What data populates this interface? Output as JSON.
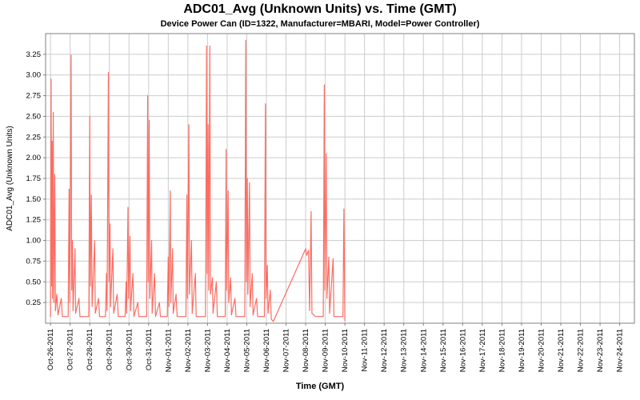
{
  "chart_data": {
    "type": "line",
    "title": "ADC01_Avg (Unknown Units) vs. Time (GMT)",
    "subtitle": "Device Power Can (ID=1322, Manufacturer=MBARI, Model=Power Controller)",
    "xlabel": "Time (GMT)",
    "ylabel": "ADC01_Avg (Unknown Units)",
    "legend": "none",
    "grid": true,
    "ylim": [
      0,
      3.5
    ],
    "x_range_days": [
      -0.25,
      29.75
    ],
    "y_tick_labels": [
      "0.25",
      "0.50",
      "0.75",
      "1.00",
      "1.25",
      "1.50",
      "1.75",
      "2.00",
      "2.25",
      "2.50",
      "2.75",
      "3.00",
      "3.25"
    ],
    "x_tick_labels": [
      "Oct-26-2011",
      "Oct-27-2011",
      "Oct-28-2011",
      "Oct-29-2011",
      "Oct-30-2011",
      "Oct-31-2011",
      "Nov-01-2011",
      "Nov-02-2011",
      "Nov-03-2011",
      "Nov-04-2011",
      "Nov-05-2011",
      "Nov-06-2011",
      "Nov-07-2011",
      "Nov-08-2011",
      "Nov-09-2011",
      "Nov-10-2011",
      "Nov-11-2011",
      "Nov-12-2011",
      "Nov-13-2011",
      "Nov-14-2011",
      "Nov-15-2011",
      "Nov-16-2011",
      "Nov-17-2011",
      "Nov-18-2011",
      "Nov-19-2011",
      "Nov-20-2011",
      "Nov-21-2011",
      "Nov-22-2011",
      "Nov-23-2011",
      "Nov-24-2011"
    ],
    "colors": {
      "line": "#fb6d62",
      "grid": "#cccccc",
      "plot_border": "#808080",
      "background": "#ffffff",
      "text": "#000000"
    },
    "series": [
      {
        "name": "ADC01_Avg",
        "x_unit": "days since Oct-26-2011",
        "points": [
          [
            0.0,
            0.08
          ],
          [
            0.03,
            2.95
          ],
          [
            0.06,
            0.45
          ],
          [
            0.08,
            2.2
          ],
          [
            0.1,
            0.3
          ],
          [
            0.14,
            2.55
          ],
          [
            0.17,
            0.25
          ],
          [
            0.22,
            1.8
          ],
          [
            0.25,
            0.15
          ],
          [
            0.32,
            0.35
          ],
          [
            0.38,
            0.1
          ],
          [
            0.55,
            0.3
          ],
          [
            0.6,
            0.08
          ],
          [
            0.9,
            0.08
          ],
          [
            0.95,
            1.62
          ],
          [
            0.98,
            0.25
          ],
          [
            1.05,
            3.24
          ],
          [
            1.08,
            0.4
          ],
          [
            1.12,
            1.0
          ],
          [
            1.15,
            0.15
          ],
          [
            1.25,
            0.9
          ],
          [
            1.28,
            0.12
          ],
          [
            1.45,
            0.3
          ],
          [
            1.5,
            0.08
          ],
          [
            1.95,
            0.08
          ],
          [
            2.0,
            2.5
          ],
          [
            2.03,
            0.45
          ],
          [
            2.08,
            1.55
          ],
          [
            2.12,
            0.2
          ],
          [
            2.25,
            1.0
          ],
          [
            2.28,
            0.12
          ],
          [
            2.45,
            0.3
          ],
          [
            2.5,
            0.08
          ],
          [
            2.8,
            0.08
          ],
          [
            2.85,
            0.6
          ],
          [
            2.88,
            0.15
          ],
          [
            2.95,
            3.03
          ],
          [
            2.98,
            0.5
          ],
          [
            3.03,
            1.2
          ],
          [
            3.06,
            0.2
          ],
          [
            3.18,
            0.9
          ],
          [
            3.22,
            0.12
          ],
          [
            3.4,
            0.35
          ],
          [
            3.45,
            0.08
          ],
          [
            3.8,
            0.08
          ],
          [
            3.85,
            0.5
          ],
          [
            3.88,
            0.12
          ],
          [
            3.95,
            1.4
          ],
          [
            3.98,
            0.3
          ],
          [
            4.05,
            1.05
          ],
          [
            4.08,
            0.15
          ],
          [
            4.2,
            0.6
          ],
          [
            4.25,
            0.08
          ],
          [
            4.45,
            0.25
          ],
          [
            4.5,
            0.08
          ],
          [
            4.9,
            0.08
          ],
          [
            4.95,
            2.75
          ],
          [
            4.98,
            0.5
          ],
          [
            5.03,
            2.45
          ],
          [
            5.06,
            0.3
          ],
          [
            5.15,
            1.0
          ],
          [
            5.18,
            0.12
          ],
          [
            5.3,
            0.6
          ],
          [
            5.35,
            0.08
          ],
          [
            5.55,
            0.25
          ],
          [
            5.6,
            0.08
          ],
          [
            5.95,
            0.08
          ],
          [
            6.0,
            0.8
          ],
          [
            6.03,
            0.2
          ],
          [
            6.1,
            1.6
          ],
          [
            6.13,
            0.25
          ],
          [
            6.22,
            0.9
          ],
          [
            6.25,
            0.12
          ],
          [
            6.4,
            0.35
          ],
          [
            6.45,
            0.08
          ],
          [
            6.9,
            0.08
          ],
          [
            6.95,
            1.55
          ],
          [
            6.98,
            0.3
          ],
          [
            7.05,
            2.4
          ],
          [
            7.08,
            0.35
          ],
          [
            7.18,
            1.0
          ],
          [
            7.22,
            0.12
          ],
          [
            7.38,
            0.6
          ],
          [
            7.42,
            0.08
          ],
          [
            7.9,
            0.08
          ],
          [
            7.95,
            3.35
          ],
          [
            7.98,
            0.6
          ],
          [
            8.03,
            2.4
          ],
          [
            8.06,
            0.4
          ],
          [
            8.12,
            3.35
          ],
          [
            8.15,
            0.35
          ],
          [
            8.25,
            0.55
          ],
          [
            8.28,
            0.12
          ],
          [
            8.45,
            0.5
          ],
          [
            8.5,
            0.08
          ],
          [
            8.9,
            0.08
          ],
          [
            8.95,
            2.1
          ],
          [
            8.98,
            0.4
          ],
          [
            9.05,
            1.6
          ],
          [
            9.08,
            0.25
          ],
          [
            9.18,
            0.55
          ],
          [
            9.22,
            0.1
          ],
          [
            9.4,
            0.3
          ],
          [
            9.45,
            0.08
          ],
          [
            9.9,
            0.08
          ],
          [
            9.95,
            3.42
          ],
          [
            9.98,
            0.5
          ],
          [
            10.03,
            1.75
          ],
          [
            10.06,
            0.35
          ],
          [
            10.14,
            1.7
          ],
          [
            10.17,
            0.2
          ],
          [
            10.28,
            0.6
          ],
          [
            10.32,
            0.1
          ],
          [
            10.5,
            0.3
          ],
          [
            10.55,
            0.08
          ],
          [
            10.9,
            0.08
          ],
          [
            10.95,
            2.65
          ],
          [
            10.98,
            0.3
          ],
          [
            11.05,
            0.7
          ],
          [
            11.08,
            0.12
          ],
          [
            11.2,
            0.4
          ],
          [
            11.25,
            0.05
          ],
          [
            11.35,
            0.02
          ],
          [
            13.0,
            0.9
          ],
          [
            13.05,
            0.82
          ],
          [
            13.15,
            0.88
          ],
          [
            13.2,
            0.15
          ],
          [
            13.28,
            1.35
          ],
          [
            13.32,
            0.12
          ],
          [
            13.5,
            0.08
          ],
          [
            13.9,
            0.08
          ],
          [
            13.95,
            2.88
          ],
          [
            13.98,
            0.4
          ],
          [
            14.05,
            2.05
          ],
          [
            14.08,
            0.3
          ],
          [
            14.18,
            0.8
          ],
          [
            14.22,
            0.12
          ],
          [
            14.4,
            0.78
          ],
          [
            14.44,
            0.08
          ],
          [
            14.9,
            0.08
          ],
          [
            14.95,
            1.38
          ],
          [
            15.0,
            0.03
          ]
        ]
      }
    ]
  }
}
